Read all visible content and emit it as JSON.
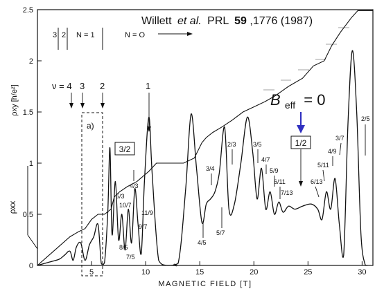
{
  "chart_data": {
    "type": "line",
    "citation": {
      "author": "Willett",
      "etal": "et al.",
      "journal": "PRL",
      "volume": "59",
      "pages_year": ",1776 (1987)"
    },
    "xlabel": "MAGNETIC FIELD [T]",
    "ylabel_xy": "ρxy [h/e²]",
    "ylabel_xx": "ρxx",
    "xlim": [
      0,
      31
    ],
    "ylim": [
      0,
      2.5
    ],
    "xticks": [
      5,
      10,
      15,
      20,
      25,
      30
    ],
    "xtick_labels": [
      "5",
      "10",
      "15",
      "20",
      "25",
      "30"
    ],
    "yticks": [
      0,
      0.5,
      1,
      1.5,
      2,
      2.5
    ],
    "ytick_labels": [
      "0",
      "0.5",
      "1",
      "1.5",
      "2",
      "2.5"
    ],
    "series": [
      {
        "name": "ρxy",
        "x": [
          0,
          1.5,
          3,
          3.8,
          4.4,
          5.0,
          5.6,
          6.2,
          6.8,
          7.1,
          7.6,
          8.3,
          9.2,
          10.3,
          11.0,
          12.5,
          13.5,
          14.5,
          15.2,
          15.6,
          16.2,
          17.0,
          18.0,
          19.0,
          20.0,
          21.0,
          22.0,
          23.2,
          24.5,
          25.5,
          26.5,
          27.2,
          28.0,
          29.0,
          29.6,
          31.0
        ],
        "y": [
          0,
          0.14,
          0.28,
          0.33,
          0.36,
          0.45,
          0.5,
          0.5,
          0.55,
          0.67,
          0.72,
          0.77,
          0.82,
          0.92,
          1.0,
          1.0,
          1.0,
          1.05,
          1.2,
          1.25,
          1.3,
          1.35,
          1.42,
          1.5,
          1.55,
          1.6,
          1.66,
          1.75,
          1.83,
          1.95,
          2.0,
          2.15,
          2.28,
          2.42,
          2.49,
          2.49
        ]
      },
      {
        "name": "ρxx",
        "x": [
          0,
          1,
          2,
          2.5,
          3,
          3.3,
          3.6,
          4.0,
          4.4,
          4.8,
          5.2,
          5.6,
          5.9,
          6.2,
          6.5,
          6.7,
          6.9,
          7.2,
          7.5,
          7.8,
          8.1,
          8.4,
          8.7,
          9.0,
          9.3,
          9.6,
          9.9,
          10.3,
          10.6,
          11.2,
          12.0,
          13.0,
          13.7,
          14.2,
          14.7,
          15.2,
          15.6,
          16.0,
          16.4,
          16.8,
          17.3,
          17.7,
          18.2,
          18.8,
          19.4,
          19.9,
          20.3,
          20.7,
          21.1,
          21.5,
          21.9,
          22.3,
          22.7,
          23.2,
          23.8,
          24.5,
          25.3,
          25.9,
          26.3,
          26.7,
          27.1,
          27.5,
          27.9,
          28.3,
          28.7,
          29.1,
          29.5,
          29.9,
          30.3,
          30.5
        ],
        "y": [
          0.0,
          0.03,
          0.06,
          0.1,
          0.14,
          0.05,
          0.18,
          0.22,
          0.05,
          0.2,
          0.28,
          0.4,
          0.02,
          0.03,
          0.52,
          1.15,
          0.3,
          0.82,
          0.25,
          0.5,
          0.15,
          0.55,
          0.22,
          0.75,
          0.4,
          0.12,
          0.85,
          1.45,
          0.9,
          0.05,
          0.0,
          0.02,
          0.75,
          1.48,
          0.95,
          0.42,
          0.6,
          0.65,
          0.72,
          0.9,
          1.35,
          0.55,
          0.6,
          1.0,
          1.45,
          1.1,
          0.65,
          0.95,
          0.55,
          0.72,
          0.5,
          0.62,
          0.52,
          0.58,
          0.55,
          0.58,
          0.6,
          0.55,
          0.45,
          0.72,
          0.55,
          0.85,
          0.4,
          0.1,
          1.4,
          2.1,
          1.5,
          0.3,
          0.0,
          0.0
        ]
      }
    ],
    "annotations": {
      "landau_levels": [
        "3",
        "2",
        "N = 1",
        "N = O"
      ],
      "nu_label": "ν = 4",
      "nu_values": [
        "3",
        "2",
        "1"
      ],
      "boxed_labels": [
        "3/2",
        "1/2"
      ],
      "box_a_label": "a)",
      "fractions_left": [
        "4/3",
        "5/3",
        "10/7",
        "11/9",
        "9/7",
        "8/5",
        "7/5"
      ],
      "fractions_right": [
        "2/3",
        "3/5",
        "3/4",
        "4/7",
        "5/9",
        "6/11",
        "7/13",
        "5/7",
        "4/5",
        "6/13",
        "5/11",
        "4/9",
        "3/7",
        "2/5"
      ],
      "beff_label": "B",
      "beff_sub": "eff",
      "beff_eq": "= 0"
    }
  }
}
